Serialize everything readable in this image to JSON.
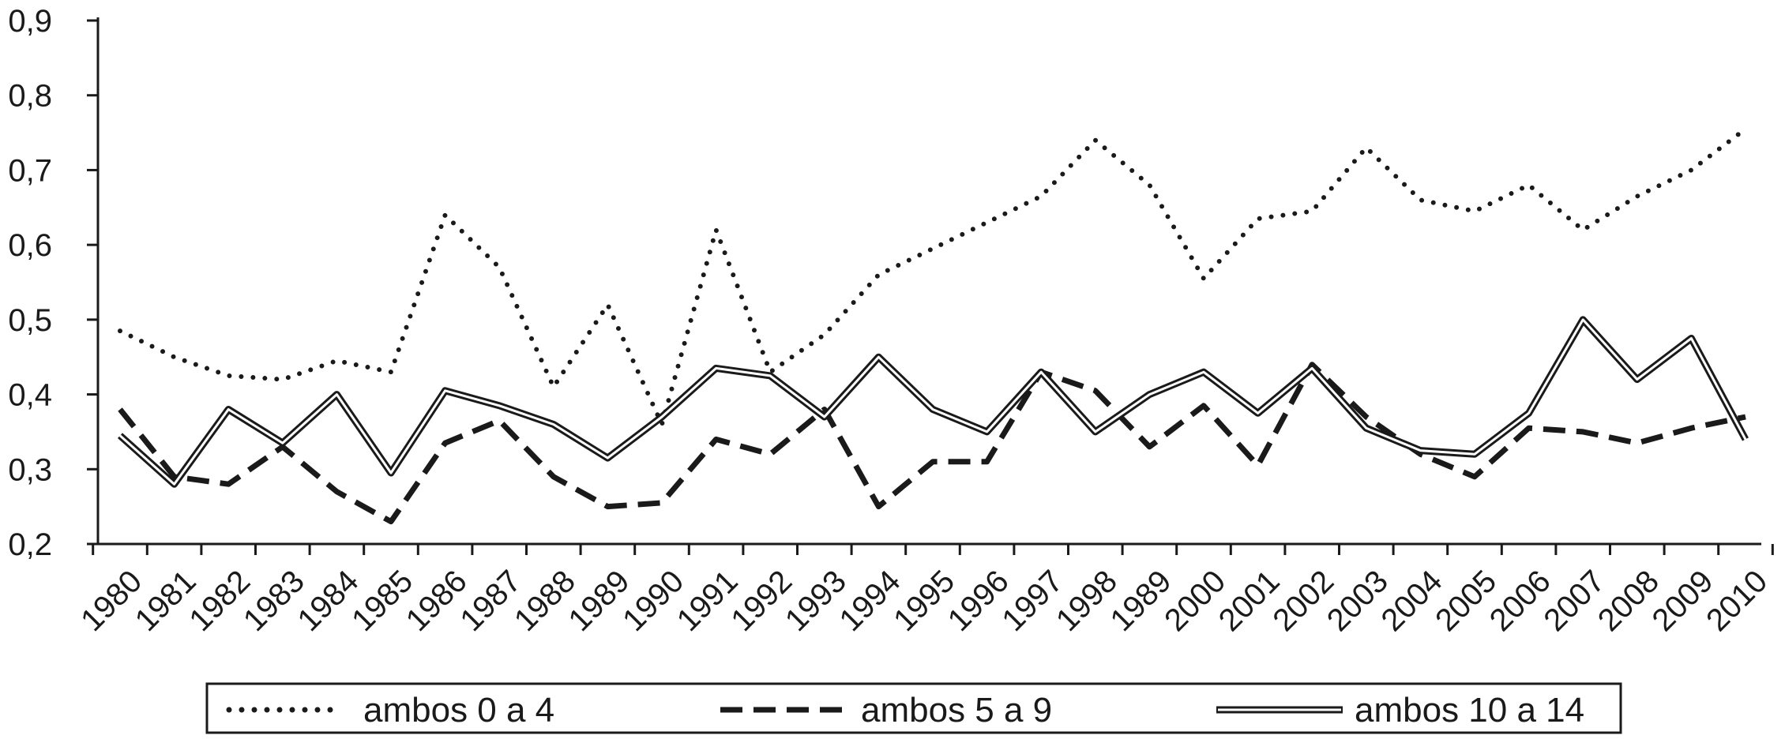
{
  "chart_data": {
    "type": "line",
    "title": "",
    "xlabel": "",
    "ylabel": "",
    "ylim": [
      0.2,
      0.9
    ],
    "yticks": [
      "0,2",
      "0,3",
      "0,4",
      "0,5",
      "0,6",
      "0,7",
      "0,8",
      "0,9"
    ],
    "categories": [
      "1980",
      "1981",
      "1982",
      "1983",
      "1984",
      "1985",
      "1986",
      "1987",
      "1988",
      "1989",
      "1990",
      "1991",
      "1992",
      "1993",
      "1994",
      "1995",
      "1996",
      "1997",
      "1998",
      "1989",
      "2000",
      "2001",
      "2002",
      "2003",
      "2004",
      "2005",
      "2006",
      "2007",
      "2008",
      "2009",
      "2010"
    ],
    "grid": false,
    "legend_position": "bottom",
    "series": [
      {
        "name": "ambos 0 a 4",
        "style": "dotted",
        "color": "#1a1a1a",
        "values": [
          0.485,
          0.45,
          0.425,
          0.42,
          0.445,
          0.43,
          0.64,
          0.57,
          0.41,
          0.52,
          0.36,
          0.62,
          0.43,
          0.48,
          0.56,
          0.595,
          0.63,
          0.665,
          0.74,
          0.68,
          0.555,
          0.635,
          0.645,
          0.73,
          0.66,
          0.645,
          0.68,
          0.62,
          0.665,
          0.7,
          0.755
        ]
      },
      {
        "name": "ambos 5 a 9",
        "style": "dashed",
        "color": "#1a1a1a",
        "values": [
          0.38,
          0.29,
          0.28,
          0.33,
          0.27,
          0.23,
          0.335,
          0.365,
          0.29,
          0.25,
          0.255,
          0.34,
          0.32,
          0.38,
          0.25,
          0.31,
          0.31,
          0.43,
          0.405,
          0.33,
          0.385,
          0.305,
          0.44,
          0.37,
          0.32,
          0.29,
          0.355,
          0.35,
          0.335,
          0.355,
          0.37
        ]
      },
      {
        "name": "ambos 10 a 14",
        "style": "double",
        "color": "#1a1a1a",
        "values": [
          0.345,
          0.28,
          0.38,
          0.335,
          0.4,
          0.295,
          0.405,
          0.385,
          0.36,
          0.315,
          0.37,
          0.435,
          0.425,
          0.37,
          0.45,
          0.38,
          0.35,
          0.43,
          0.35,
          0.4,
          0.43,
          0.375,
          0.435,
          0.355,
          0.325,
          0.32,
          0.375,
          0.5,
          0.42,
          0.475,
          0.34
        ]
      }
    ]
  }
}
